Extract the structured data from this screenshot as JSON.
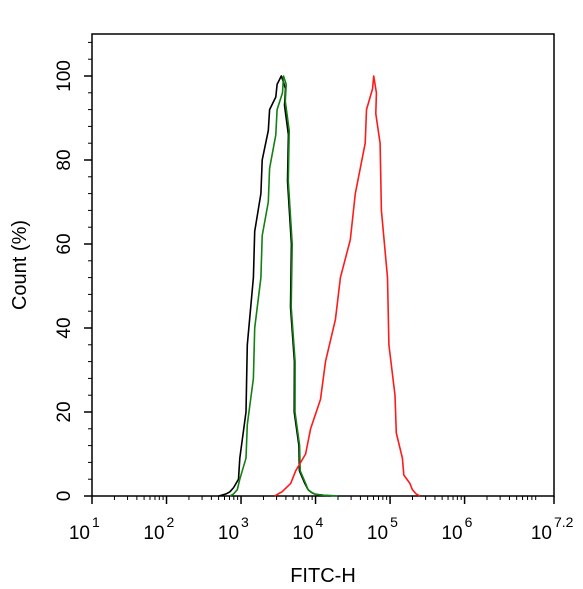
{
  "chart_data": {
    "type": "line",
    "title": "",
    "xlabel": "FITC-H",
    "ylabel": "Count  (%)",
    "x_scale": "log10",
    "xlim": [
      10,
      15848932
    ],
    "ylim": [
      0,
      110
    ],
    "grid": false,
    "x_ticks": [
      {
        "base": "10",
        "exp": "1",
        "value": 10
      },
      {
        "base": "10",
        "exp": "2",
        "value": 100
      },
      {
        "base": "10",
        "exp": "3",
        "value": 1000
      },
      {
        "base": "10",
        "exp": "4",
        "value": 10000
      },
      {
        "base": "10",
        "exp": "5",
        "value": 100000
      },
      {
        "base": "10",
        "exp": "6",
        "value": 1000000
      },
      {
        "base": "10",
        "exp": "7.2",
        "value": 15848932
      }
    ],
    "y_ticks": [
      "0",
      "20",
      "40",
      "60",
      "80",
      "100"
    ],
    "series": [
      {
        "color": "#000000",
        "x": [
          501,
          631,
          708,
          794,
          891,
          1000,
          1122,
          1259,
          1413,
          1585,
          1778,
          1995,
          2239,
          2512,
          2818,
          3162,
          3467,
          3631,
          3802,
          3981,
          4169,
          4365,
          4571,
          4786,
          5012,
          5370,
          5754,
          6310,
          6918,
          7943,
          8913,
          10000,
          12589,
          15849
        ],
        "y": [
          0,
          0.5,
          1,
          2,
          4,
          9,
          20,
          36,
          52,
          63,
          72,
          80,
          87,
          92,
          95,
          98,
          100,
          99,
          97,
          93,
          86,
          75,
          60,
          45,
          32,
          20,
          12,
          6,
          3,
          1.5,
          0.8,
          0.4,
          0.2,
          0
        ]
      },
      {
        "color": "#138013",
        "x": [
          708,
          794,
          891,
          1000,
          1122,
          1259,
          1413,
          1585,
          1778,
          1995,
          2239,
          2512,
          2818,
          3162,
          3467,
          3715,
          3890,
          4074,
          4266,
          4467,
          4677,
          4898,
          5129,
          5495,
          5888,
          6457,
          7079,
          7943,
          8913,
          10000,
          12589,
          15849,
          19953
        ],
        "y": [
          0,
          0.5,
          1.5,
          4,
          9,
          17,
          28,
          40,
          52,
          62,
          70,
          78,
          86,
          92,
          96,
          100,
          98,
          94,
          87,
          75,
          60,
          45,
          32,
          20,
          12,
          6,
          3,
          1.5,
          0.8,
          0.4,
          0.2,
          0.1,
          0
        ]
      },
      {
        "color": "#ff1a1a",
        "x": [
          2818,
          3548,
          4467,
          5623,
          7079,
          8913,
          11220,
          14125,
          17783,
          22387,
          28184,
          35481,
          44668,
          50119,
          56234,
          60256,
          63096,
          66834,
          70795,
          79433,
          89125,
          100000,
          112202,
          125893,
          141254,
          158489,
          177828,
          199526,
          223872,
          251189
        ],
        "y": [
          0,
          1,
          3,
          6,
          10,
          16,
          23,
          32,
          42,
          52,
          61,
          72,
          84,
          92,
          97,
          100,
          96,
          91,
          84,
          68,
          52,
          36,
          24,
          15,
          9,
          5,
          3,
          1.5,
          0.5,
          0
        ]
      }
    ]
  }
}
